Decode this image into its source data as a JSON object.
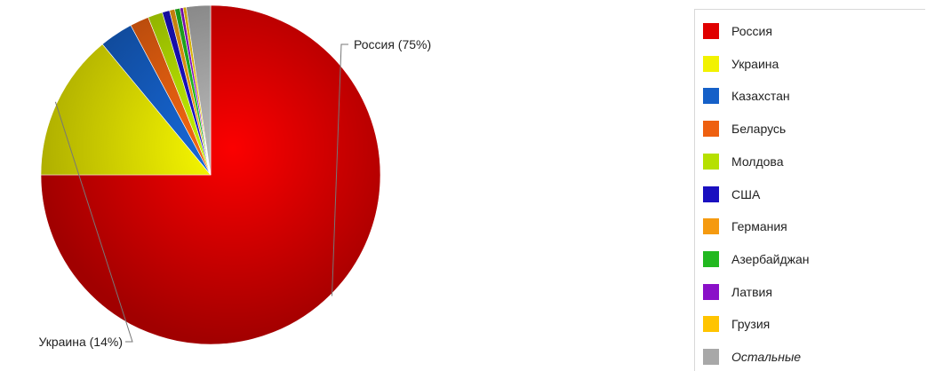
{
  "chart_data": {
    "type": "pie",
    "slices": [
      {
        "label": "Россия",
        "value": 75,
        "color": "#e00000"
      },
      {
        "label": "Украина",
        "value": 14,
        "color": "#f2f200"
      },
      {
        "label": "Казахстан",
        "value": 3.2,
        "color": "#1560c8"
      },
      {
        "label": "Беларусь",
        "value": 1.8,
        "color": "#ee6010"
      },
      {
        "label": "Молдова",
        "value": 1.4,
        "color": "#b6e000"
      },
      {
        "label": "США",
        "value": 0.7,
        "color": "#1a10c0"
      },
      {
        "label": "Германия",
        "value": 0.5,
        "color": "#f59a10"
      },
      {
        "label": "Азербайджан",
        "value": 0.5,
        "color": "#22b820"
      },
      {
        "label": "Латвия",
        "value": 0.3,
        "color": "#8a10c8"
      },
      {
        "label": "Грузия",
        "value": 0.3,
        "color": "#ffc400"
      },
      {
        "label": "Остальные",
        "value": 2.3,
        "color": "#a8a8a8"
      }
    ],
    "data_labels": [
      {
        "slice": "Россия",
        "text": "Россия (75%)"
      },
      {
        "slice": "Украина",
        "text": "Украина (14%)"
      }
    ],
    "legend_position": "right"
  }
}
